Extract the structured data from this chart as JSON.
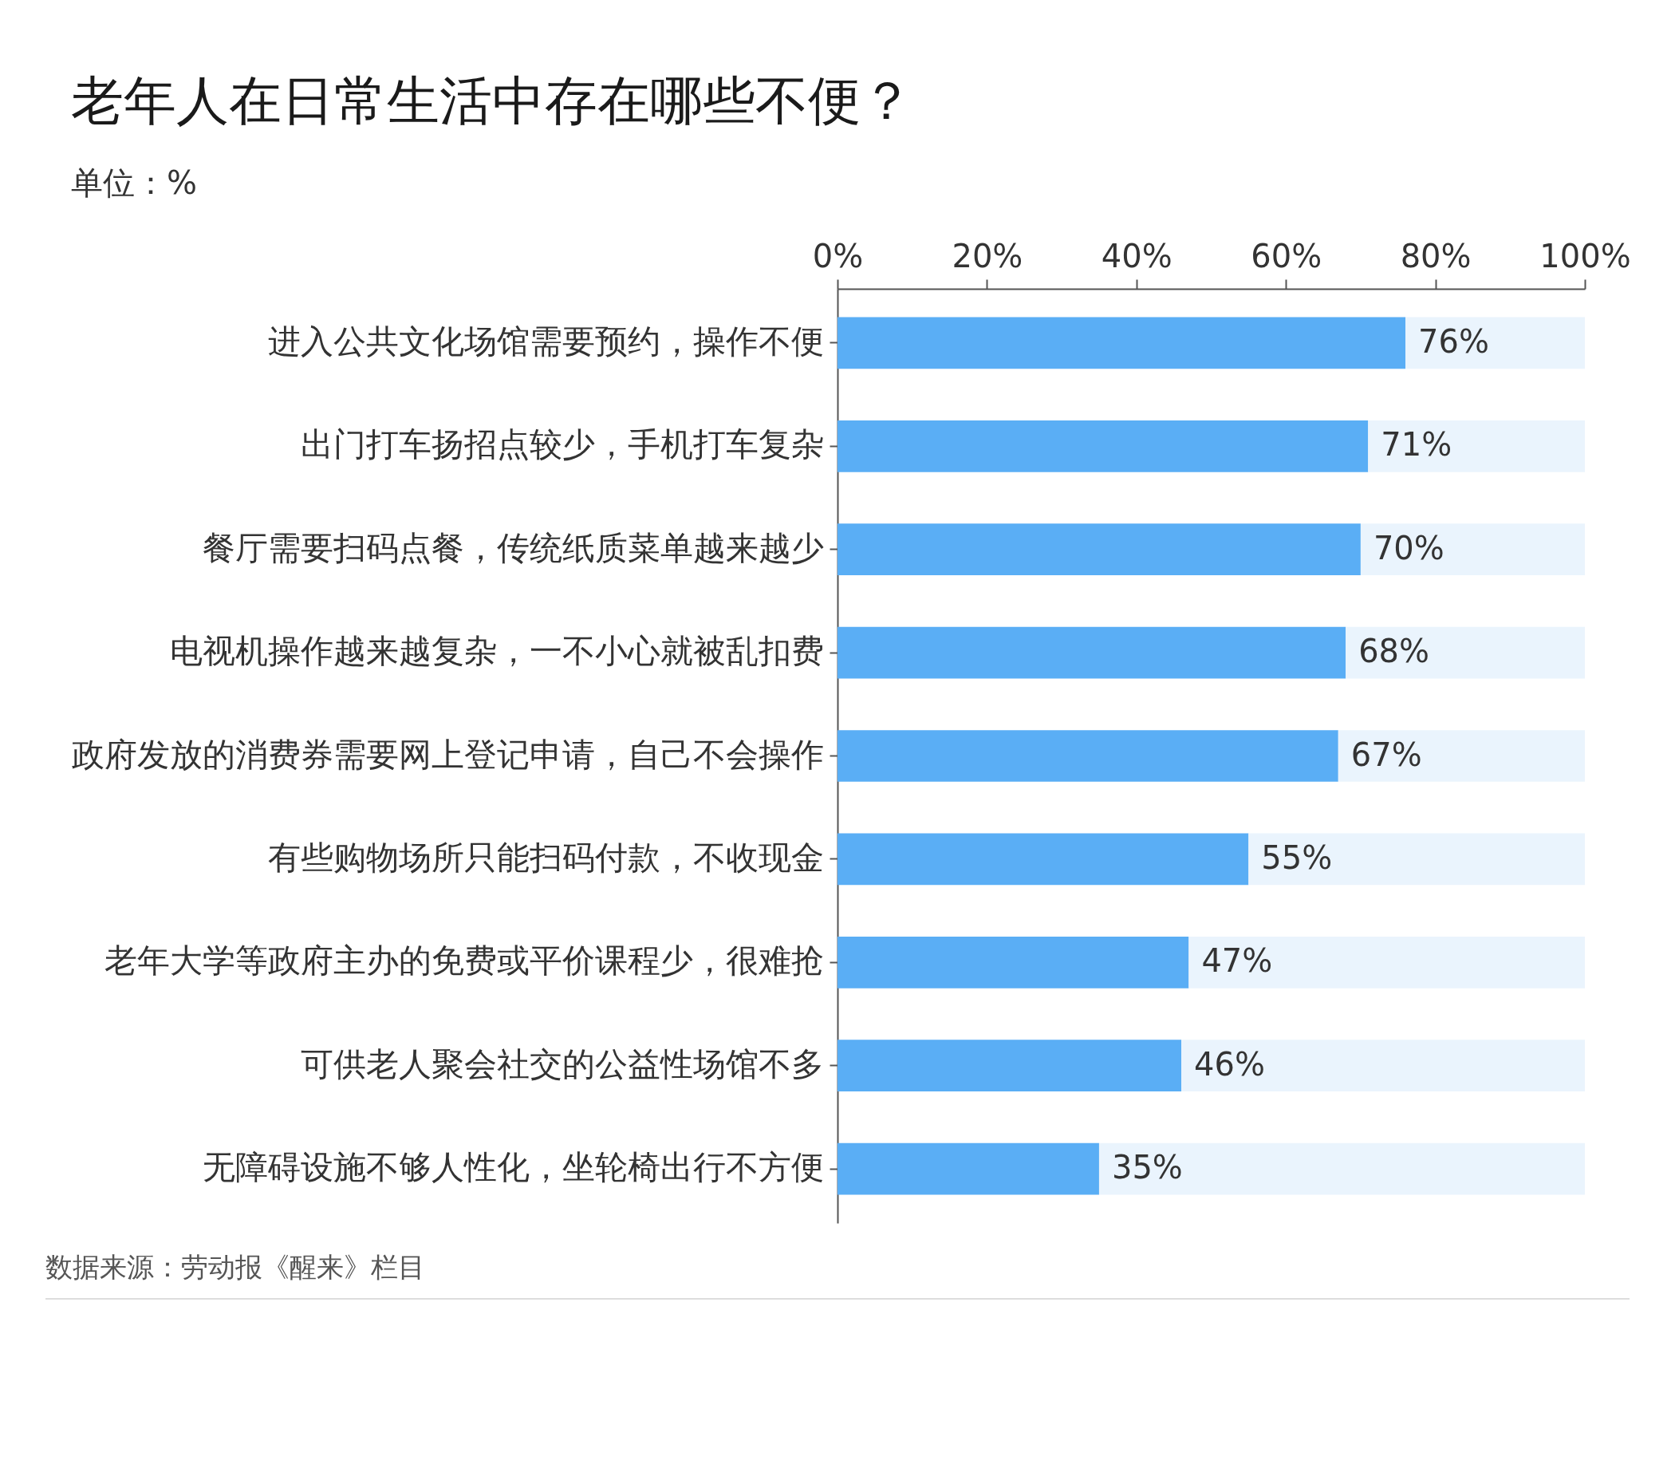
{
  "chart_data": {
    "type": "bar",
    "orientation": "horizontal",
    "stacked": true,
    "title": "老年人在日常生活中存在哪些不便？",
    "subtitle": "单位：%",
    "categories": [
      "进入公共文化场馆需要预约，操作不便",
      "出门打车扬招点较少，手机打车复杂",
      "餐厅需要扫码点餐，传统纸质菜单越来越少",
      "电视机操作越来越复杂，一不小心就被乱扣费",
      "政府发放的消费券需要网上登记申请，自己不会操作",
      "有些购物场所只能扫码付款，不收现金",
      "老年大学等政府主办的免费或平价课程少，很难抢",
      "可供老人聚会社交的公益性场馆不多",
      "无障碍设施不够人性化，坐轮椅出行不方便"
    ],
    "series": [
      {
        "color": "#5aaef5",
        "values": [
          76,
          71,
          70,
          68,
          67,
          55,
          47,
          46,
          35
        ],
        "value_labels": [
          "76%",
          "71%",
          "70%",
          "68%",
          "67%",
          "55%",
          "47%",
          "46%",
          "35%"
        ]
      },
      {
        "color": "#eaf4fd",
        "values": [
          24,
          29,
          30,
          32,
          33,
          45,
          53,
          54,
          65
        ]
      }
    ],
    "xlim": [
      0,
      100
    ],
    "xticks": [
      {
        "value": 0,
        "label": "0%"
      },
      {
        "value": 20,
        "label": "20%"
      },
      {
        "value": 40,
        "label": "40%"
      },
      {
        "value": 60,
        "label": "60%"
      },
      {
        "value": 80,
        "label": "80%"
      },
      {
        "value": 100,
        "label": "100%"
      }
    ],
    "annotations": [
      "数据来源：劳动报《醒来》栏目"
    ]
  }
}
